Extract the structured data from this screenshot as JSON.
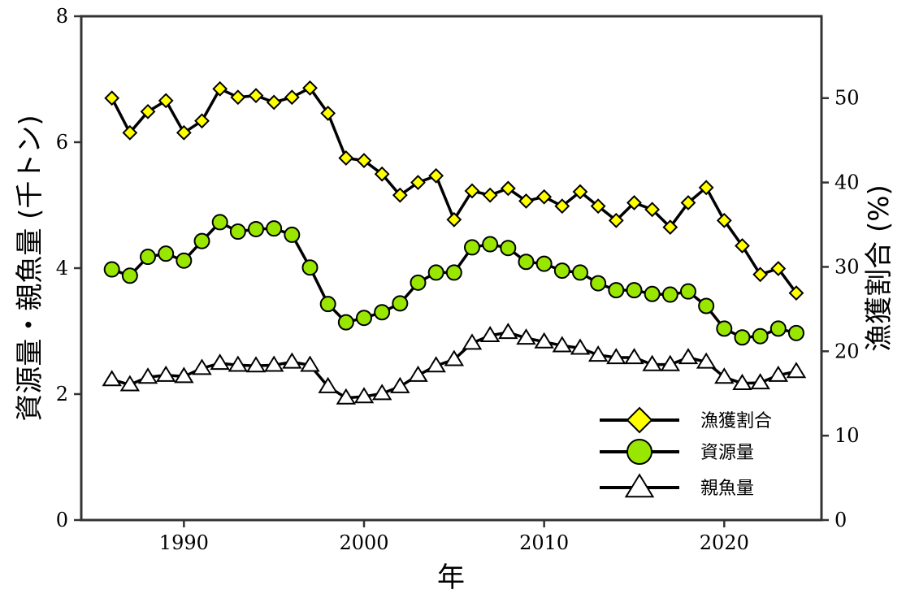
{
  "chart_data": {
    "type": "line",
    "xlabel": "年",
    "ylabel": "資源量・親魚量 (千トン)",
    "y2label": "漁獲割合 (%)",
    "xlim": [
      1984.3,
      2025.4
    ],
    "ylim": [
      0,
      8
    ],
    "y2lim": [
      0,
      59.7
    ],
    "x_ticks": [
      1990,
      2000,
      2010,
      2020
    ],
    "y_ticks": [
      0,
      2,
      4,
      6,
      8
    ],
    "y2_ticks": [
      0,
      10,
      20,
      30,
      40,
      50
    ],
    "x": [
      1986,
      1987,
      1988,
      1989,
      1990,
      1991,
      1992,
      1993,
      1994,
      1995,
      1996,
      1997,
      1998,
      1999,
      2000,
      2001,
      2002,
      2003,
      2004,
      2005,
      2006,
      2007,
      2008,
      2009,
      2010,
      2011,
      2012,
      2013,
      2014,
      2015,
      2016,
      2017,
      2018,
      2019,
      2020,
      2021,
      2022,
      2023,
      2024
    ],
    "legend_position": "lower-right",
    "grid": false,
    "series": [
      {
        "name": "漁獲割合",
        "axis": "right",
        "marker": "diamond",
        "color": "#ffff00",
        "values": [
          50.0,
          45.9,
          48.4,
          49.7,
          45.9,
          47.3,
          51.1,
          50.1,
          50.3,
          49.5,
          50.1,
          51.2,
          48.2,
          42.9,
          42.6,
          41.0,
          38.5,
          40.0,
          40.8,
          35.6,
          39.0,
          38.5,
          39.3,
          37.8,
          38.3,
          37.2,
          38.9,
          37.2,
          35.5,
          37.6,
          36.8,
          34.7,
          37.6,
          39.4,
          35.5,
          32.5,
          29.1,
          29.8,
          26.9
        ]
      },
      {
        "name": "資源量",
        "axis": "left",
        "marker": "circle",
        "color": "#99e600",
        "values": [
          3.98,
          3.88,
          4.18,
          4.23,
          4.12,
          4.43,
          4.73,
          4.58,
          4.62,
          4.63,
          4.53,
          4.01,
          3.43,
          3.14,
          3.21,
          3.3,
          3.44,
          3.77,
          3.93,
          3.93,
          4.33,
          4.38,
          4.32,
          4.1,
          4.07,
          3.96,
          3.93,
          3.76,
          3.65,
          3.65,
          3.59,
          3.58,
          3.63,
          3.4,
          3.04,
          2.9,
          2.92,
          3.04,
          2.97
        ]
      },
      {
        "name": "親魚量",
        "axis": "left",
        "marker": "triangle",
        "color": "#ffffff",
        "values": [
          2.23,
          2.15,
          2.27,
          2.3,
          2.28,
          2.41,
          2.49,
          2.46,
          2.45,
          2.46,
          2.51,
          2.46,
          2.12,
          1.94,
          1.96,
          2.01,
          2.12,
          2.3,
          2.45,
          2.55,
          2.81,
          2.93,
          2.98,
          2.89,
          2.83,
          2.77,
          2.73,
          2.62,
          2.58,
          2.58,
          2.47,
          2.47,
          2.58,
          2.51,
          2.27,
          2.17,
          2.18,
          2.3,
          2.36
        ]
      }
    ]
  }
}
